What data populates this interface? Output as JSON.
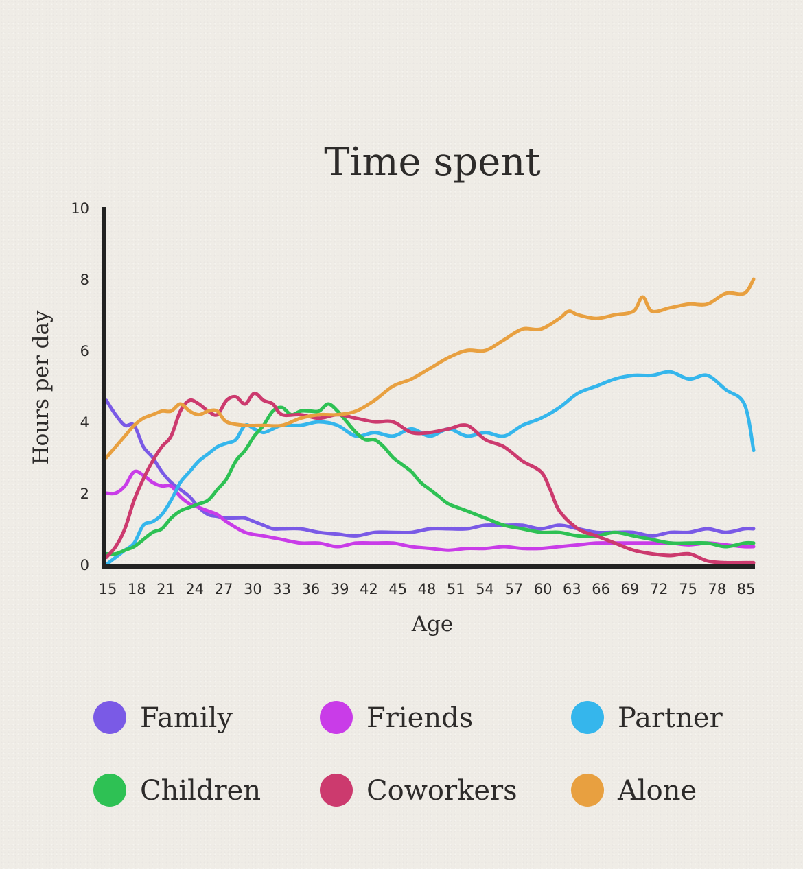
{
  "chart_data": {
    "type": "line",
    "title": "Time spent",
    "xlabel": "Age",
    "ylabel": "Hours per day",
    "xlim": [
      15,
      85
    ],
    "ylim": [
      0,
      10
    ],
    "x_ticks": [
      "15",
      "18",
      "21",
      "24",
      "27",
      "30",
      "33",
      "36",
      "39",
      "42",
      "45",
      "48",
      "51",
      "54",
      "57",
      "60",
      "63",
      "66",
      "69",
      "72",
      "75",
      "78",
      "85"
    ],
    "y_ticks": [
      "0",
      "2",
      "4",
      "6",
      "8",
      "10"
    ],
    "grid": false,
    "legend_position": "bottom",
    "series": [
      {
        "name": "Family",
        "color": "#7a5ae6",
        "x": [
          15,
          16,
          17,
          18,
          19,
          20,
          21,
          22,
          23,
          24,
          25,
          26,
          27,
          28,
          29,
          30,
          31,
          32,
          33,
          34,
          36,
          38,
          40,
          42,
          44,
          46,
          48,
          50,
          52,
          54,
          56,
          58,
          60,
          62,
          64,
          66,
          68,
          70,
          72,
          74,
          76,
          78,
          80,
          82,
          84,
          85
        ],
        "y": [
          4.6,
          4.2,
          3.9,
          3.9,
          3.3,
          3.0,
          2.6,
          2.3,
          2.1,
          1.9,
          1.6,
          1.4,
          1.35,
          1.3,
          1.3,
          1.3,
          1.2,
          1.1,
          1.0,
          1.0,
          1.0,
          0.9,
          0.85,
          0.8,
          0.9,
          0.9,
          0.9,
          1.0,
          1.0,
          1.0,
          1.1,
          1.1,
          1.1,
          1.0,
          1.1,
          1.0,
          0.9,
          0.9,
          0.9,
          0.8,
          0.9,
          0.9,
          1.0,
          0.9,
          1.0,
          1.0
        ]
      },
      {
        "name": "Friends",
        "color": "#c93ce8",
        "x": [
          15,
          16,
          17,
          18,
          19,
          20,
          21,
          22,
          23,
          24,
          25,
          26,
          27,
          28,
          30,
          32,
          34,
          36,
          38,
          40,
          42,
          44,
          46,
          48,
          50,
          52,
          54,
          56,
          58,
          60,
          62,
          64,
          66,
          68,
          70,
          72,
          74,
          76,
          78,
          80,
          82,
          84,
          85
        ],
        "y": [
          2.0,
          2.0,
          2.2,
          2.6,
          2.5,
          2.3,
          2.2,
          2.2,
          1.9,
          1.7,
          1.6,
          1.5,
          1.4,
          1.2,
          0.9,
          0.8,
          0.7,
          0.6,
          0.6,
          0.5,
          0.6,
          0.6,
          0.6,
          0.5,
          0.45,
          0.4,
          0.45,
          0.45,
          0.5,
          0.45,
          0.45,
          0.5,
          0.55,
          0.6,
          0.6,
          0.6,
          0.6,
          0.6,
          0.55,
          0.6,
          0.55,
          0.5,
          0.5
        ]
      },
      {
        "name": "Partner",
        "color": "#35b6ec",
        "x": [
          15,
          16,
          17,
          18,
          19,
          20,
          21,
          22,
          23,
          24,
          25,
          26,
          27,
          28,
          29,
          30,
          31,
          32,
          33,
          34,
          36,
          38,
          40,
          42,
          44,
          46,
          48,
          50,
          52,
          54,
          56,
          58,
          60,
          62,
          64,
          66,
          68,
          70,
          72,
          74,
          76,
          78,
          80,
          82,
          84,
          85
        ],
        "y": [
          0.0,
          0.2,
          0.4,
          0.6,
          1.1,
          1.2,
          1.4,
          1.8,
          2.3,
          2.6,
          2.9,
          3.1,
          3.3,
          3.4,
          3.5,
          3.9,
          3.8,
          3.7,
          3.8,
          3.9,
          3.9,
          4.0,
          3.9,
          3.6,
          3.7,
          3.6,
          3.8,
          3.6,
          3.8,
          3.6,
          3.7,
          3.6,
          3.9,
          4.1,
          4.4,
          4.8,
          5.0,
          5.2,
          5.3,
          5.3,
          5.4,
          5.2,
          5.3,
          4.9,
          4.5,
          3.2
        ]
      },
      {
        "name": "Children",
        "color": "#2ec154",
        "x": [
          15,
          16,
          17,
          18,
          19,
          20,
          21,
          22,
          23,
          24,
          25,
          26,
          27,
          28,
          29,
          30,
          31,
          32,
          33,
          34,
          35,
          36,
          37,
          38,
          39,
          40,
          41,
          42,
          43,
          44,
          45,
          46,
          47,
          48,
          49,
          50,
          51,
          52,
          54,
          56,
          58,
          60,
          62,
          64,
          66,
          68,
          70,
          72,
          74,
          76,
          78,
          80,
          82,
          84,
          85
        ],
        "y": [
          0.3,
          0.3,
          0.4,
          0.5,
          0.7,
          0.9,
          1.0,
          1.3,
          1.5,
          1.6,
          1.7,
          1.8,
          2.1,
          2.4,
          2.9,
          3.2,
          3.6,
          3.9,
          4.3,
          4.4,
          4.2,
          4.3,
          4.3,
          4.3,
          4.5,
          4.3,
          4.0,
          3.7,
          3.5,
          3.5,
          3.3,
          3.0,
          2.8,
          2.6,
          2.3,
          2.1,
          1.9,
          1.7,
          1.5,
          1.3,
          1.1,
          1.0,
          0.9,
          0.9,
          0.8,
          0.8,
          0.9,
          0.8,
          0.7,
          0.6,
          0.6,
          0.6,
          0.5,
          0.6,
          0.6
        ]
      },
      {
        "name": "Coworkers",
        "color": "#cc3a6e",
        "x": [
          15,
          16,
          17,
          18,
          19,
          20,
          21,
          22,
          23,
          24,
          25,
          26,
          27,
          28,
          29,
          30,
          31,
          32,
          33,
          34,
          36,
          38,
          40,
          42,
          44,
          46,
          48,
          50,
          52,
          54,
          56,
          58,
          60,
          62,
          63,
          64,
          66,
          68,
          70,
          72,
          74,
          76,
          78,
          80,
          82,
          84,
          85
        ],
        "y": [
          0.2,
          0.5,
          1.0,
          1.8,
          2.4,
          2.9,
          3.3,
          3.6,
          4.3,
          4.6,
          4.5,
          4.3,
          4.2,
          4.6,
          4.7,
          4.5,
          4.8,
          4.6,
          4.5,
          4.2,
          4.2,
          4.1,
          4.2,
          4.1,
          4.0,
          4.0,
          3.7,
          3.7,
          3.8,
          3.9,
          3.5,
          3.3,
          2.9,
          2.6,
          2.1,
          1.5,
          1.0,
          0.8,
          0.6,
          0.4,
          0.3,
          0.25,
          0.3,
          0.1,
          0.05,
          0.05,
          0.05
        ]
      },
      {
        "name": "Alone",
        "color": "#e8a040",
        "x": [
          15,
          16,
          17,
          18,
          19,
          20,
          21,
          22,
          23,
          24,
          25,
          26,
          27,
          28,
          30,
          32,
          34,
          36,
          38,
          40,
          42,
          44,
          46,
          48,
          50,
          52,
          54,
          56,
          58,
          60,
          62,
          64,
          65,
          66,
          68,
          70,
          72,
          73,
          74,
          76,
          78,
          80,
          82,
          84,
          85
        ],
        "y": [
          3.0,
          3.3,
          3.6,
          3.9,
          4.1,
          4.2,
          4.3,
          4.3,
          4.5,
          4.3,
          4.2,
          4.3,
          4.3,
          4.0,
          3.9,
          3.9,
          3.9,
          4.1,
          4.2,
          4.2,
          4.3,
          4.6,
          5.0,
          5.2,
          5.5,
          5.8,
          6.0,
          6.0,
          6.3,
          6.6,
          6.6,
          6.9,
          7.1,
          7.0,
          6.9,
          7.0,
          7.1,
          7.5,
          7.1,
          7.2,
          7.3,
          7.3,
          7.6,
          7.6,
          8.0
        ]
      }
    ]
  }
}
